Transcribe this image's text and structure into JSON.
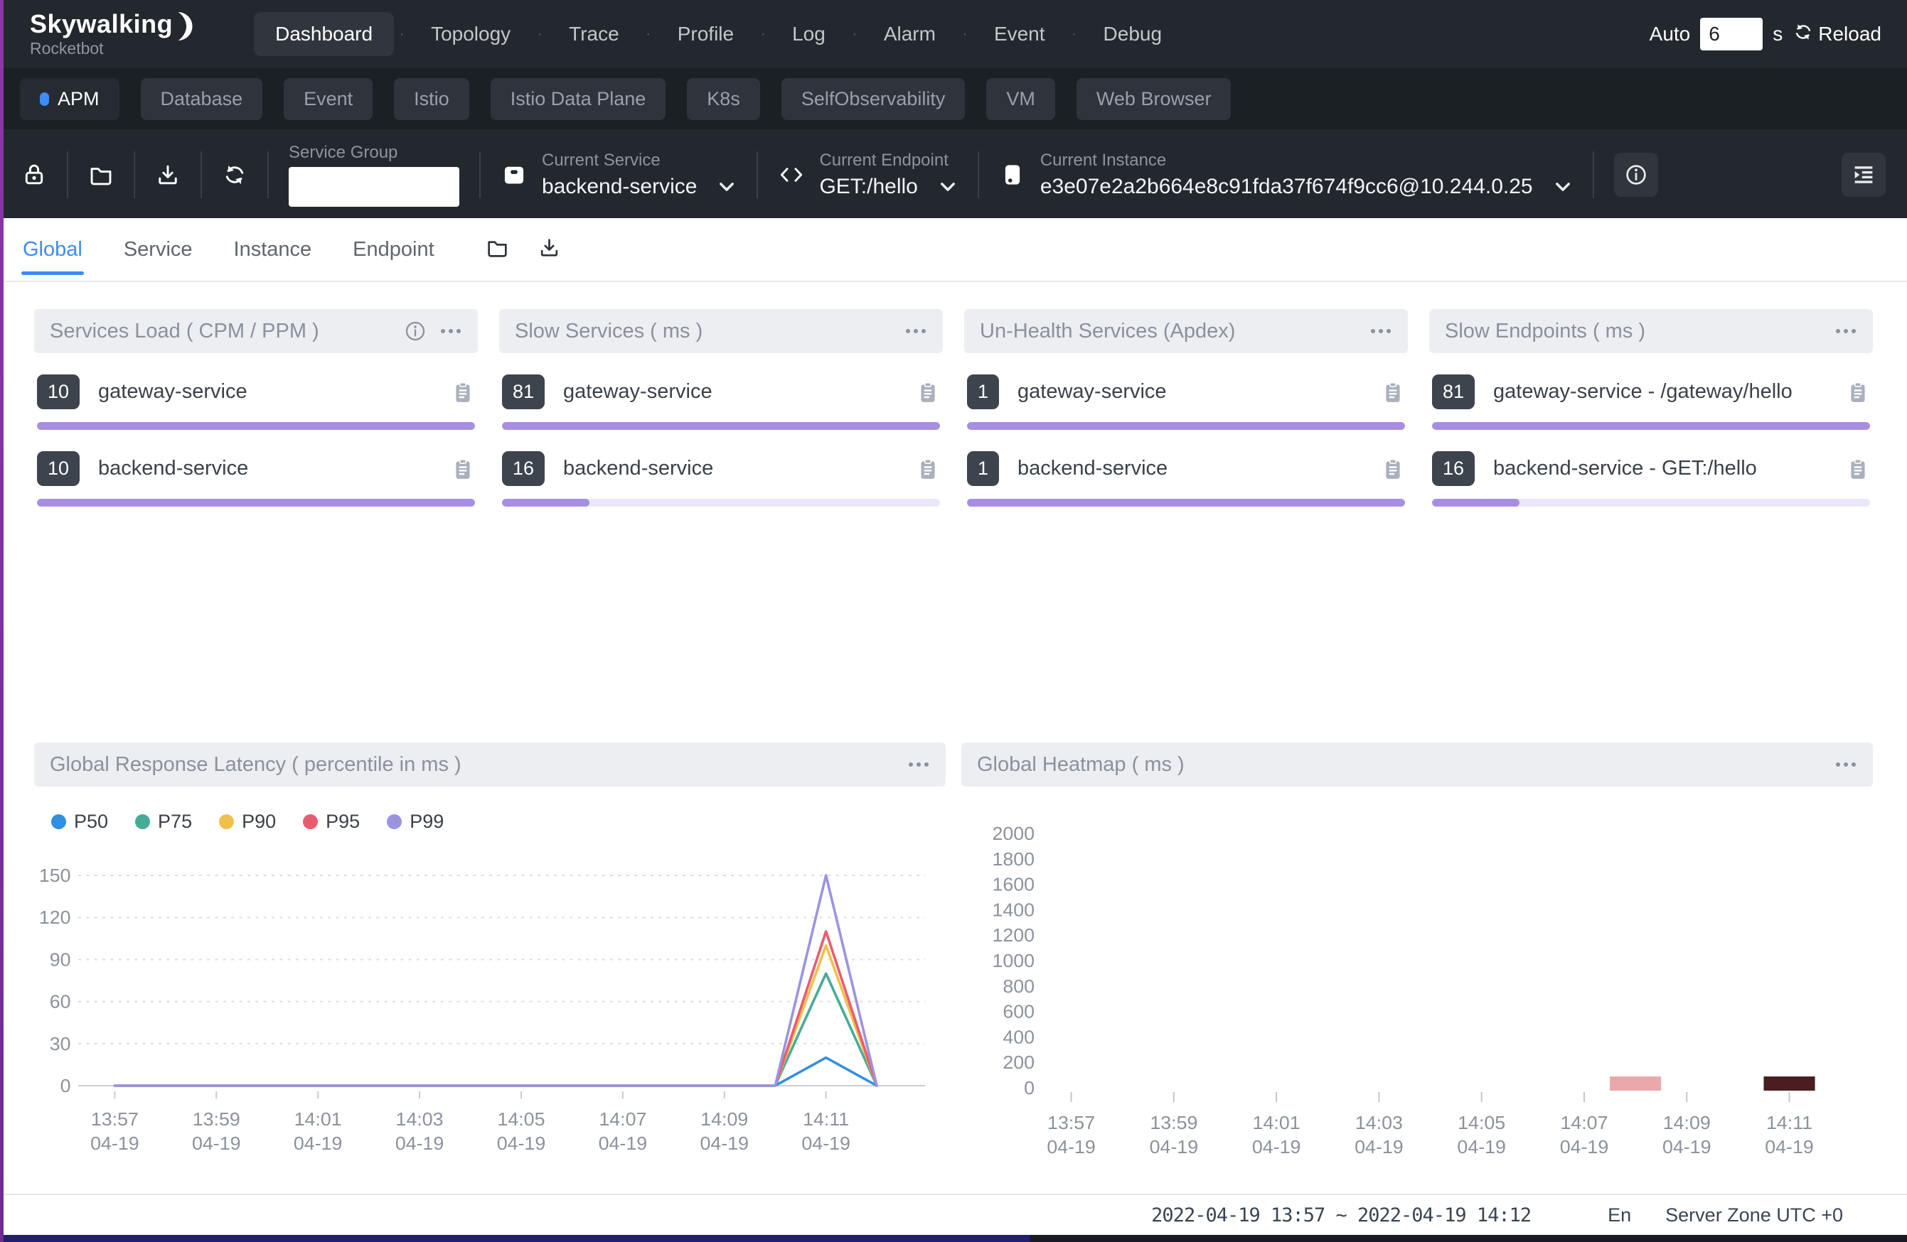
{
  "nav": {
    "logo_title": "Skywalking",
    "logo_subtitle": "Rocketbot",
    "items": [
      {
        "label": "Dashboard",
        "active": true
      },
      {
        "label": "Topology",
        "active": false
      },
      {
        "label": "Trace",
        "active": false
      },
      {
        "label": "Profile",
        "active": false
      },
      {
        "label": "Log",
        "active": false
      },
      {
        "label": "Alarm",
        "active": false
      },
      {
        "label": "Event",
        "active": false
      },
      {
        "label": "Debug",
        "active": false
      }
    ],
    "auto_label": "Auto",
    "auto_value": "6",
    "auto_unit": "s",
    "reload_label": "Reload"
  },
  "dashboard_tabs": [
    {
      "label": "APM",
      "active": true
    },
    {
      "label": "Database",
      "active": false
    },
    {
      "label": "Event",
      "active": false
    },
    {
      "label": "Istio",
      "active": false
    },
    {
      "label": "Istio Data Plane",
      "active": false
    },
    {
      "label": "K8s",
      "active": false
    },
    {
      "label": "SelfObservability",
      "active": false
    },
    {
      "label": "VM",
      "active": false
    },
    {
      "label": "Web Browser",
      "active": false
    }
  ],
  "toolbar": {
    "service_group_label": "Service Group",
    "service_group_value": "",
    "current_service": {
      "label": "Current Service",
      "value": "backend-service"
    },
    "current_endpoint": {
      "label": "Current Endpoint",
      "value": "GET:/hello"
    },
    "current_instance": {
      "label": "Current Instance",
      "value": "e3e07e2a2b664e8c91fda37f674f9cc6@10.244.0.25"
    }
  },
  "view_tabs": [
    {
      "label": "Global",
      "active": true
    },
    {
      "label": "Service",
      "active": false
    },
    {
      "label": "Instance",
      "active": false
    },
    {
      "label": "Endpoint",
      "active": false
    }
  ],
  "cards": [
    {
      "title": "Services Load ( CPM / PPM )",
      "has_info": true,
      "rows": [
        {
          "value": "10",
          "name": "gateway-service",
          "percent": 100
        },
        {
          "value": "10",
          "name": "backend-service",
          "percent": 100
        }
      ]
    },
    {
      "title": "Slow Services ( ms )",
      "has_info": false,
      "rows": [
        {
          "value": "81",
          "name": "gateway-service",
          "percent": 100
        },
        {
          "value": "16",
          "name": "backend-service",
          "percent": 20
        }
      ]
    },
    {
      "title": "Un-Health Services (Apdex)",
      "has_info": false,
      "rows": [
        {
          "value": "1",
          "name": "gateway-service",
          "percent": 100
        },
        {
          "value": "1",
          "name": "backend-service",
          "percent": 100
        }
      ]
    },
    {
      "title": "Slow Endpoints ( ms )",
      "has_info": false,
      "rows": [
        {
          "value": "81",
          "name": "gateway-service - /gateway/hello",
          "percent": 100
        },
        {
          "value": "16",
          "name": "backend-service - GET:/hello",
          "percent": 20
        }
      ]
    }
  ],
  "chart_data": [
    {
      "type": "line",
      "title": "Global Response Latency ( percentile in ms )",
      "x": [
        "13:57",
        "13:58",
        "13:59",
        "14:00",
        "14:01",
        "14:02",
        "14:03",
        "14:04",
        "14:05",
        "14:06",
        "14:07",
        "14:08",
        "14:09",
        "14:10",
        "14:11",
        "14:12"
      ],
      "x_date": "04-19",
      "label_every": 2,
      "ylim": [
        0,
        150
      ],
      "yticks": [
        0,
        30,
        60,
        90,
        120,
        150
      ],
      "grid": "dashed-horizontal",
      "legend_position": "top-left",
      "series": [
        {
          "name": "P50",
          "color": "#2f8fe0",
          "values": [
            0,
            0,
            0,
            0,
            0,
            0,
            0,
            0,
            0,
            0,
            0,
            0,
            0,
            0,
            20,
            0
          ]
        },
        {
          "name": "P75",
          "color": "#47ab96",
          "values": [
            0,
            0,
            0,
            0,
            0,
            0,
            0,
            0,
            0,
            0,
            0,
            0,
            0,
            0,
            80,
            0
          ]
        },
        {
          "name": "P90",
          "color": "#f0c04a",
          "values": [
            0,
            0,
            0,
            0,
            0,
            0,
            0,
            0,
            0,
            0,
            0,
            0,
            0,
            0,
            100,
            0
          ]
        },
        {
          "name": "P95",
          "color": "#ea5b70",
          "values": [
            0,
            0,
            0,
            0,
            0,
            0,
            0,
            0,
            0,
            0,
            0,
            0,
            0,
            0,
            110,
            0
          ]
        },
        {
          "name": "P99",
          "color": "#9a94e0",
          "values": [
            0,
            0,
            0,
            0,
            0,
            0,
            0,
            0,
            0,
            0,
            0,
            0,
            0,
            0,
            150,
            0
          ]
        }
      ]
    },
    {
      "type": "heatmap",
      "title": "Global Heatmap ( ms )",
      "x": [
        "13:57",
        "13:58",
        "13:59",
        "14:00",
        "14:01",
        "14:02",
        "14:03",
        "14:04",
        "14:05",
        "14:06",
        "14:07",
        "14:08",
        "14:09",
        "14:10",
        "14:11",
        "14:12"
      ],
      "x_date": "04-19",
      "label_every": 2,
      "ylim": [
        0,
        2000
      ],
      "yticks": [
        0,
        200,
        400,
        600,
        800,
        1000,
        1200,
        1400,
        1600,
        1800,
        2000
      ],
      "grid": "none",
      "cells": [
        {
          "time": "14:08",
          "bucket": "0-100",
          "color": "#e9a9ab"
        },
        {
          "time": "14:11",
          "bucket": "0-100",
          "color": "#4a1e20"
        }
      ]
    }
  ],
  "footer": {
    "time_range": "2022-04-19 13:57 ~ 2022-04-19 14:12",
    "language": "En",
    "server_zone": "Server Zone UTC +0"
  },
  "colors": {
    "accent_blue": "#3c8cf3",
    "bar_purple": "#a88ee2",
    "navbar_bg": "#23272e",
    "badge_bg": "#3d444e"
  },
  "icons": {
    "toolbar_left": [
      "lock-icon",
      "folder-icon",
      "download-icon",
      "refresh-icon"
    ],
    "sections": [
      "service-box-icon",
      "code-brackets-icon",
      "instance-device-icon"
    ],
    "right": [
      "info-circle-icon",
      "indent-list-icon"
    ],
    "card_header": [
      "info-circle-icon",
      "ellipsis-menu-icon"
    ],
    "card_row": [
      "clipboard-icon"
    ],
    "view_tabs": [
      "folder-icon",
      "download-icon"
    ],
    "nav_right": [
      "reload-icon"
    ]
  }
}
